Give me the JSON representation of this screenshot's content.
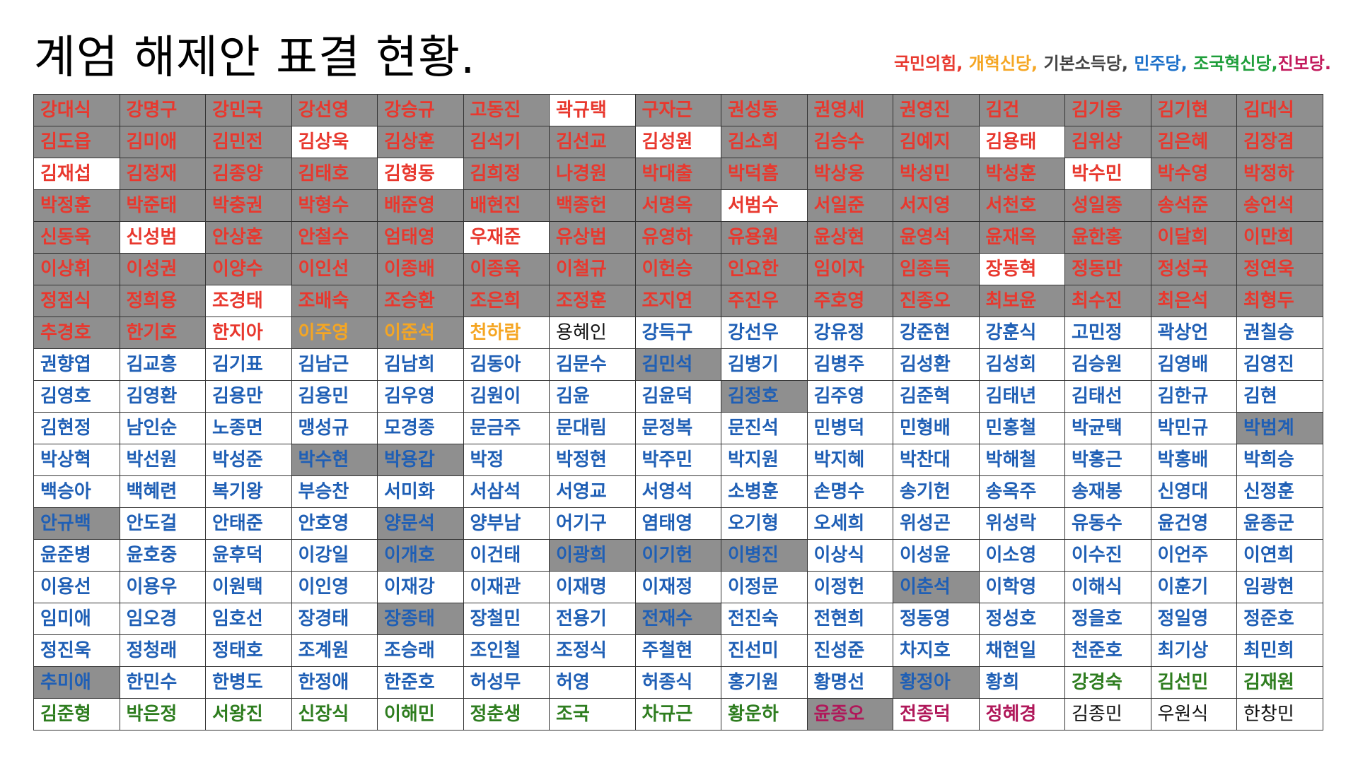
{
  "title": "계엄 해제안 표결 현황.",
  "legend": [
    {
      "label": "국민의힘,",
      "color": "#e8382e"
    },
    {
      "label": " 개혁신당,",
      "color": "#f5a623"
    },
    {
      "label": " 기본소득당,",
      "color": "#444444"
    },
    {
      "label": " 민주당,",
      "color": "#1a6fc9"
    },
    {
      "label": " 조국혁신당,",
      "color": "#1e9e3a"
    },
    {
      "label": "진보당.",
      "color": "#c2185b"
    }
  ],
  "party_colors": {
    "R": "#e8382e",
    "O": "#f5a623",
    "K": "#111111",
    "B": "#1f5fb5",
    "G": "#2e7d1f",
    "M": "#b0185a"
  },
  "rows": [
    [
      [
        "강대식",
        "R",
        1
      ],
      [
        "강명구",
        "R",
        1
      ],
      [
        "강민국",
        "R",
        1
      ],
      [
        "강선영",
        "R",
        1
      ],
      [
        "강승규",
        "R",
        1
      ],
      [
        "고동진",
        "R",
        1
      ],
      [
        "곽규택",
        "R",
        0
      ],
      [
        "구자근",
        "R",
        1
      ],
      [
        "권성동",
        "R",
        1
      ],
      [
        "권영세",
        "R",
        1
      ],
      [
        "권영진",
        "R",
        1
      ],
      [
        "김건",
        "R",
        1
      ],
      [
        "김기웅",
        "R",
        1
      ],
      [
        "김기현",
        "R",
        1
      ],
      [
        "김대식",
        "R",
        1
      ]
    ],
    [
      [
        "김도읍",
        "R",
        1
      ],
      [
        "김미애",
        "R",
        1
      ],
      [
        "김민전",
        "R",
        1
      ],
      [
        "김상욱",
        "R",
        0
      ],
      [
        "김상훈",
        "R",
        1
      ],
      [
        "김석기",
        "R",
        1
      ],
      [
        "김선교",
        "R",
        1
      ],
      [
        "김성원",
        "R",
        0
      ],
      [
        "김소희",
        "R",
        1
      ],
      [
        "김승수",
        "R",
        1
      ],
      [
        "김예지",
        "R",
        1
      ],
      [
        "김용태",
        "R",
        0
      ],
      [
        "김위상",
        "R",
        1
      ],
      [
        "김은혜",
        "R",
        1
      ],
      [
        "김장겸",
        "R",
        1
      ]
    ],
    [
      [
        "김재섭",
        "R",
        0
      ],
      [
        "김정재",
        "R",
        1
      ],
      [
        "김종양",
        "R",
        1
      ],
      [
        "김태호",
        "R",
        1
      ],
      [
        "김형동",
        "R",
        0
      ],
      [
        "김희정",
        "R",
        1
      ],
      [
        "나경원",
        "R",
        1
      ],
      [
        "박대출",
        "R",
        1
      ],
      [
        "박덕흠",
        "R",
        1
      ],
      [
        "박상웅",
        "R",
        1
      ],
      [
        "박성민",
        "R",
        1
      ],
      [
        "박성훈",
        "R",
        1
      ],
      [
        "박수민",
        "R",
        0
      ],
      [
        "박수영",
        "R",
        1
      ],
      [
        "박정하",
        "R",
        1
      ]
    ],
    [
      [
        "박정훈",
        "R",
        1
      ],
      [
        "박준태",
        "R",
        1
      ],
      [
        "박충권",
        "R",
        1
      ],
      [
        "박형수",
        "R",
        1
      ],
      [
        "배준영",
        "R",
        1
      ],
      [
        "배현진",
        "R",
        1
      ],
      [
        "백종헌",
        "R",
        1
      ],
      [
        "서명옥",
        "R",
        1
      ],
      [
        "서범수",
        "R",
        0
      ],
      [
        "서일준",
        "R",
        1
      ],
      [
        "서지영",
        "R",
        1
      ],
      [
        "서천호",
        "R",
        1
      ],
      [
        "성일종",
        "R",
        1
      ],
      [
        "송석준",
        "R",
        1
      ],
      [
        "송언석",
        "R",
        1
      ]
    ],
    [
      [
        "신동욱",
        "R",
        1
      ],
      [
        "신성범",
        "R",
        0
      ],
      [
        "안상훈",
        "R",
        1
      ],
      [
        "안철수",
        "R",
        1
      ],
      [
        "엄태영",
        "R",
        1
      ],
      [
        "우재준",
        "R",
        0
      ],
      [
        "유상범",
        "R",
        1
      ],
      [
        "유영하",
        "R",
        1
      ],
      [
        "유용원",
        "R",
        1
      ],
      [
        "윤상현",
        "R",
        1
      ],
      [
        "윤영석",
        "R",
        1
      ],
      [
        "윤재옥",
        "R",
        1
      ],
      [
        "윤한홍",
        "R",
        1
      ],
      [
        "이달희",
        "R",
        1
      ],
      [
        "이만희",
        "R",
        1
      ]
    ],
    [
      [
        "이상휘",
        "R",
        1
      ],
      [
        "이성권",
        "R",
        1
      ],
      [
        "이양수",
        "R",
        1
      ],
      [
        "이인선",
        "R",
        1
      ],
      [
        "이종배",
        "R",
        1
      ],
      [
        "이종욱",
        "R",
        1
      ],
      [
        "이철규",
        "R",
        1
      ],
      [
        "이헌승",
        "R",
        1
      ],
      [
        "인요한",
        "R",
        1
      ],
      [
        "임이자",
        "R",
        1
      ],
      [
        "임종득",
        "R",
        1
      ],
      [
        "장동혁",
        "R",
        0
      ],
      [
        "정동만",
        "R",
        1
      ],
      [
        "정성국",
        "R",
        1
      ],
      [
        "정연욱",
        "R",
        1
      ]
    ],
    [
      [
        "정점식",
        "R",
        1
      ],
      [
        "정희용",
        "R",
        1
      ],
      [
        "조경태",
        "R",
        0
      ],
      [
        "조배숙",
        "R",
        1
      ],
      [
        "조승환",
        "R",
        1
      ],
      [
        "조은희",
        "R",
        1
      ],
      [
        "조정훈",
        "R",
        1
      ],
      [
        "조지연",
        "R",
        1
      ],
      [
        "주진우",
        "R",
        1
      ],
      [
        "주호영",
        "R",
        1
      ],
      [
        "진종오",
        "R",
        1
      ],
      [
        "최보윤",
        "R",
        1
      ],
      [
        "최수진",
        "R",
        1
      ],
      [
        "최은석",
        "R",
        1
      ],
      [
        "최형두",
        "R",
        1
      ]
    ],
    [
      [
        "추경호",
        "R",
        1
      ],
      [
        "한기호",
        "R",
        1
      ],
      [
        "한지아",
        "R",
        0
      ],
      [
        "이주영",
        "O",
        1
      ],
      [
        "이준석",
        "O",
        1
      ],
      [
        "천하람",
        "O",
        0
      ],
      [
        "용혜인",
        "K",
        0
      ],
      [
        "강득구",
        "B",
        0
      ],
      [
        "강선우",
        "B",
        0
      ],
      [
        "강유정",
        "B",
        0
      ],
      [
        "강준현",
        "B",
        0
      ],
      [
        "강훈식",
        "B",
        0
      ],
      [
        "고민정",
        "B",
        0
      ],
      [
        "곽상언",
        "B",
        0
      ],
      [
        "권칠승",
        "B",
        0
      ]
    ],
    [
      [
        "권향엽",
        "B",
        0
      ],
      [
        "김교흥",
        "B",
        0
      ],
      [
        "김기표",
        "B",
        0
      ],
      [
        "김남근",
        "B",
        0
      ],
      [
        "김남희",
        "B",
        0
      ],
      [
        "김동아",
        "B",
        0
      ],
      [
        "김문수",
        "B",
        0
      ],
      [
        "김민석",
        "B",
        1
      ],
      [
        "김병기",
        "B",
        0
      ],
      [
        "김병주",
        "B",
        0
      ],
      [
        "김성환",
        "B",
        0
      ],
      [
        "김성회",
        "B",
        0
      ],
      [
        "김승원",
        "B",
        0
      ],
      [
        "김영배",
        "B",
        0
      ],
      [
        "김영진",
        "B",
        0
      ]
    ],
    [
      [
        "김영호",
        "B",
        0
      ],
      [
        "김영환",
        "B",
        0
      ],
      [
        "김용만",
        "B",
        0
      ],
      [
        "김용민",
        "B",
        0
      ],
      [
        "김우영",
        "B",
        0
      ],
      [
        "김원이",
        "B",
        0
      ],
      [
        "김윤",
        "B",
        0
      ],
      [
        "김윤덕",
        "B",
        0
      ],
      [
        "김정호",
        "B",
        1
      ],
      [
        "김주영",
        "B",
        0
      ],
      [
        "김준혁",
        "B",
        0
      ],
      [
        "김태년",
        "B",
        0
      ],
      [
        "김태선",
        "B",
        0
      ],
      [
        "김한규",
        "B",
        0
      ],
      [
        "김현",
        "B",
        0
      ]
    ],
    [
      [
        "김현정",
        "B",
        0
      ],
      [
        "남인순",
        "B",
        0
      ],
      [
        "노종면",
        "B",
        0
      ],
      [
        "맹성규",
        "B",
        0
      ],
      [
        "모경종",
        "B",
        0
      ],
      [
        "문금주",
        "B",
        0
      ],
      [
        "문대림",
        "B",
        0
      ],
      [
        "문정복",
        "B",
        0
      ],
      [
        "문진석",
        "B",
        0
      ],
      [
        "민병덕",
        "B",
        0
      ],
      [
        "민형배",
        "B",
        0
      ],
      [
        "민홍철",
        "B",
        0
      ],
      [
        "박균택",
        "B",
        0
      ],
      [
        "박민규",
        "B",
        0
      ],
      [
        "박범계",
        "B",
        1
      ]
    ],
    [
      [
        "박상혁",
        "B",
        0
      ],
      [
        "박선원",
        "B",
        0
      ],
      [
        "박성준",
        "B",
        0
      ],
      [
        "박수현",
        "B",
        1
      ],
      [
        "박용갑",
        "B",
        1
      ],
      [
        "박정",
        "B",
        0
      ],
      [
        "박정현",
        "B",
        0
      ],
      [
        "박주민",
        "B",
        0
      ],
      [
        "박지원",
        "B",
        0
      ],
      [
        "박지혜",
        "B",
        0
      ],
      [
        "박찬대",
        "B",
        0
      ],
      [
        "박해철",
        "B",
        0
      ],
      [
        "박홍근",
        "B",
        0
      ],
      [
        "박홍배",
        "B",
        0
      ],
      [
        "박희승",
        "B",
        0
      ]
    ],
    [
      [
        "백승아",
        "B",
        0
      ],
      [
        "백혜련",
        "B",
        0
      ],
      [
        "복기왕",
        "B",
        0
      ],
      [
        "부승찬",
        "B",
        0
      ],
      [
        "서미화",
        "B",
        0
      ],
      [
        "서삼석",
        "B",
        0
      ],
      [
        "서영교",
        "B",
        0
      ],
      [
        "서영석",
        "B",
        0
      ],
      [
        "소병훈",
        "B",
        0
      ],
      [
        "손명수",
        "B",
        0
      ],
      [
        "송기헌",
        "B",
        0
      ],
      [
        "송옥주",
        "B",
        0
      ],
      [
        "송재봉",
        "B",
        0
      ],
      [
        "신영대",
        "B",
        0
      ],
      [
        "신정훈",
        "B",
        0
      ]
    ],
    [
      [
        "안규백",
        "B",
        1
      ],
      [
        "안도걸",
        "B",
        0
      ],
      [
        "안태준",
        "B",
        0
      ],
      [
        "안호영",
        "B",
        0
      ],
      [
        "양문석",
        "B",
        1
      ],
      [
        "양부남",
        "B",
        0
      ],
      [
        "어기구",
        "B",
        0
      ],
      [
        "염태영",
        "B",
        0
      ],
      [
        "오기형",
        "B",
        0
      ],
      [
        "오세희",
        "B",
        0
      ],
      [
        "위성곤",
        "B",
        0
      ],
      [
        "위성락",
        "B",
        0
      ],
      [
        "유동수",
        "B",
        0
      ],
      [
        "윤건영",
        "B",
        0
      ],
      [
        "윤종군",
        "B",
        0
      ]
    ],
    [
      [
        "윤준병",
        "B",
        0
      ],
      [
        "윤호중",
        "B",
        0
      ],
      [
        "윤후덕",
        "B",
        0
      ],
      [
        "이강일",
        "B",
        0
      ],
      [
        "이개호",
        "B",
        1
      ],
      [
        "이건태",
        "B",
        0
      ],
      [
        "이광희",
        "B",
        1
      ],
      [
        "이기헌",
        "B",
        1
      ],
      [
        "이병진",
        "B",
        1
      ],
      [
        "이상식",
        "B",
        0
      ],
      [
        "이성윤",
        "B",
        0
      ],
      [
        "이소영",
        "B",
        0
      ],
      [
        "이수진",
        "B",
        0
      ],
      [
        "이언주",
        "B",
        0
      ],
      [
        "이연희",
        "B",
        0
      ]
    ],
    [
      [
        "이용선",
        "B",
        0
      ],
      [
        "이용우",
        "B",
        0
      ],
      [
        "이원택",
        "B",
        0
      ],
      [
        "이인영",
        "B",
        0
      ],
      [
        "이재강",
        "B",
        0
      ],
      [
        "이재관",
        "B",
        0
      ],
      [
        "이재명",
        "B",
        0
      ],
      [
        "이재정",
        "B",
        0
      ],
      [
        "이정문",
        "B",
        0
      ],
      [
        "이정헌",
        "B",
        0
      ],
      [
        "이춘석",
        "B",
        1
      ],
      [
        "이학영",
        "B",
        0
      ],
      [
        "이해식",
        "B",
        0
      ],
      [
        "이훈기",
        "B",
        0
      ],
      [
        "임광현",
        "B",
        0
      ]
    ],
    [
      [
        "임미애",
        "B",
        0
      ],
      [
        "임오경",
        "B",
        0
      ],
      [
        "임호선",
        "B",
        0
      ],
      [
        "장경태",
        "B",
        0
      ],
      [
        "장종태",
        "B",
        1
      ],
      [
        "장철민",
        "B",
        0
      ],
      [
        "전용기",
        "B",
        0
      ],
      [
        "전재수",
        "B",
        1
      ],
      [
        "전진숙",
        "B",
        0
      ],
      [
        "전현희",
        "B",
        0
      ],
      [
        "정동영",
        "B",
        0
      ],
      [
        "정성호",
        "B",
        0
      ],
      [
        "정을호",
        "B",
        0
      ],
      [
        "정일영",
        "B",
        0
      ],
      [
        "정준호",
        "B",
        0
      ]
    ],
    [
      [
        "정진욱",
        "B",
        0
      ],
      [
        "정청래",
        "B",
        0
      ],
      [
        "정태호",
        "B",
        0
      ],
      [
        "조계원",
        "B",
        0
      ],
      [
        "조승래",
        "B",
        0
      ],
      [
        "조인철",
        "B",
        0
      ],
      [
        "조정식",
        "B",
        0
      ],
      [
        "주철현",
        "B",
        0
      ],
      [
        "진선미",
        "B",
        0
      ],
      [
        "진성준",
        "B",
        0
      ],
      [
        "차지호",
        "B",
        0
      ],
      [
        "채현일",
        "B",
        0
      ],
      [
        "천준호",
        "B",
        0
      ],
      [
        "최기상",
        "B",
        0
      ],
      [
        "최민희",
        "B",
        0
      ]
    ],
    [
      [
        "추미애",
        "B",
        1
      ],
      [
        "한민수",
        "B",
        0
      ],
      [
        "한병도",
        "B",
        0
      ],
      [
        "한정애",
        "B",
        0
      ],
      [
        "한준호",
        "B",
        0
      ],
      [
        "허성무",
        "B",
        0
      ],
      [
        "허영",
        "B",
        0
      ],
      [
        "허종식",
        "B",
        0
      ],
      [
        "홍기원",
        "B",
        0
      ],
      [
        "황명선",
        "B",
        0
      ],
      [
        "황정아",
        "B",
        1
      ],
      [
        "황희",
        "B",
        0
      ],
      [
        "강경숙",
        "G",
        0
      ],
      [
        "김선민",
        "G",
        0
      ],
      [
        "김재원",
        "G",
        0
      ]
    ],
    [
      [
        "김준형",
        "G",
        0
      ],
      [
        "박은정",
        "G",
        0
      ],
      [
        "서왕진",
        "G",
        0
      ],
      [
        "신장식",
        "G",
        0
      ],
      [
        "이해민",
        "G",
        0
      ],
      [
        "정춘생",
        "G",
        0
      ],
      [
        "조국",
        "G",
        0
      ],
      [
        "차규근",
        "G",
        0
      ],
      [
        "황운하",
        "G",
        0
      ],
      [
        "윤종오",
        "M",
        1
      ],
      [
        "전종덕",
        "M",
        0
      ],
      [
        "정혜경",
        "M",
        0
      ],
      [
        "김종민",
        "K",
        0
      ],
      [
        "우원식",
        "K",
        0
      ],
      [
        "한창민",
        "K",
        0
      ]
    ]
  ]
}
